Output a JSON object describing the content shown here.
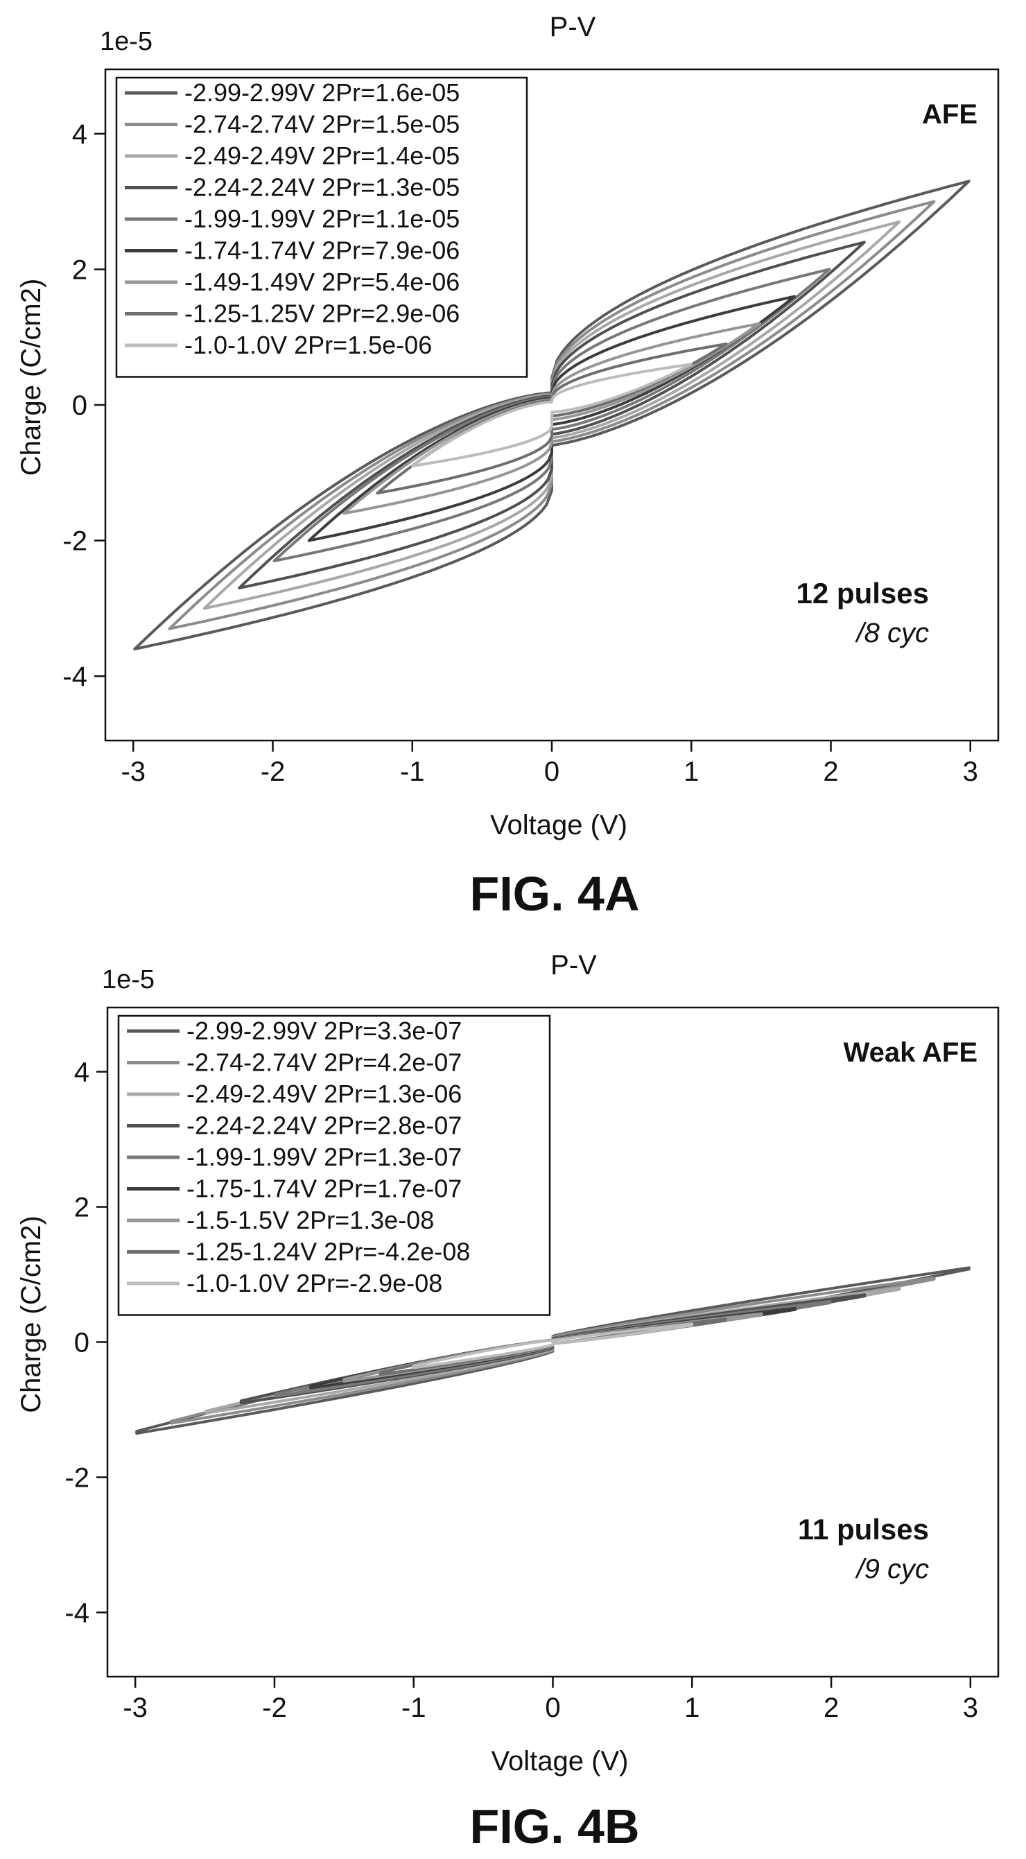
{
  "chart_data": [
    {
      "type": "line",
      "title": "P-V",
      "xlabel": "Voltage (V)",
      "ylabel": "Charge (C/cm2)",
      "y_multiplier_label": "1e-5",
      "xlim": [
        -3.2,
        3.2
      ],
      "ylim": [
        -4.95,
        4.95
      ],
      "xticks": [
        -3,
        -2,
        -1,
        0,
        1,
        2,
        3
      ],
      "yticks": [
        -4,
        -2,
        0,
        2,
        4
      ],
      "xtick_labels": [
        "-3",
        "-2",
        "-1",
        "0",
        "1",
        "2",
        "3"
      ],
      "ytick_labels": [
        "-4",
        "-2",
        "0",
        "2",
        "4"
      ],
      "legend_position": "top-left",
      "grid": false,
      "annotations": {
        "material": "AFE",
        "pulses": "12 pulses",
        "cycles": "/8 cyc"
      },
      "figure_label": "FIG. 4A",
      "series": [
        {
          "name": "-2.99-2.99V 2Pr=1.6e-05",
          "vmax": 2.99,
          "qmax": 3.3,
          "qmin": -3.6,
          "color": "#5a5a5a"
        },
        {
          "name": "-2.74-2.74V 2Pr=1.5e-05",
          "vmax": 2.74,
          "qmax": 3.0,
          "qmin": -3.3,
          "color": "#8c8c8c"
        },
        {
          "name": "-2.49-2.49V 2Pr=1.4e-05",
          "vmax": 2.49,
          "qmax": 2.7,
          "qmin": -3.0,
          "color": "#a8a8a8"
        },
        {
          "name": "-2.24-2.24V 2Pr=1.3e-05",
          "vmax": 2.24,
          "qmax": 2.4,
          "qmin": -2.7,
          "color": "#505050"
        },
        {
          "name": "-1.99-1.99V 2Pr=1.1e-05",
          "vmax": 1.99,
          "qmax": 2.0,
          "qmin": -2.3,
          "color": "#787878"
        },
        {
          "name": "-1.74-1.74V 2Pr=7.9e-06",
          "vmax": 1.74,
          "qmax": 1.6,
          "qmin": -2.0,
          "color": "#3c3c3c"
        },
        {
          "name": "-1.49-1.49V 2Pr=5.4e-06",
          "vmax": 1.49,
          "qmax": 1.2,
          "qmin": -1.6,
          "color": "#969696"
        },
        {
          "name": "-1.25-1.25V 2Pr=2.9e-06",
          "vmax": 1.25,
          "qmax": 0.9,
          "qmin": -1.3,
          "color": "#6e6e6e"
        },
        {
          "name": "-1.0-1.0V 2Pr=1.5e-06",
          "vmax": 1.0,
          "qmax": 0.6,
          "qmin": -0.9,
          "color": "#bcbcbc"
        }
      ]
    },
    {
      "type": "line",
      "title": "P-V",
      "xlabel": "Voltage (V)",
      "ylabel": "Charge (C/cm2)",
      "y_multiplier_label": "1e-5",
      "xlim": [
        -3.2,
        3.2
      ],
      "ylim": [
        -4.95,
        4.95
      ],
      "xticks": [
        -3,
        -2,
        -1,
        0,
        1,
        2,
        3
      ],
      "yticks": [
        -4,
        -2,
        0,
        2,
        4
      ],
      "xtick_labels": [
        "-3",
        "-2",
        "-1",
        "0",
        "1",
        "2",
        "3"
      ],
      "ytick_labels": [
        "-4",
        "-2",
        "0",
        "2",
        "4"
      ],
      "legend_position": "top-left",
      "grid": false,
      "annotations": {
        "material": "Weak AFE",
        "pulses": "11 pulses",
        "cycles": "/9 cyc"
      },
      "figure_label": "FIG. 4B",
      "series": [
        {
          "name": "-2.99-2.99V 2Pr=3.3e-07",
          "vmax": 2.99,
          "qmax": 1.1,
          "qmin": -1.35,
          "color": "#5a5a5a"
        },
        {
          "name": "-2.74-2.74V 2Pr=4.2e-07",
          "vmax": 2.74,
          "qmax": 0.95,
          "qmin": -1.2,
          "color": "#8c8c8c"
        },
        {
          "name": "-2.49-2.49V 2Pr=1.3e-06",
          "vmax": 2.49,
          "qmax": 0.8,
          "qmin": -1.05,
          "color": "#a8a8a8"
        },
        {
          "name": "-2.24-2.24V 2Pr=2.8e-07",
          "vmax": 2.24,
          "qmax": 0.7,
          "qmin": -0.9,
          "color": "#505050"
        },
        {
          "name": "-1.99-1.99V 2Pr=1.3e-07",
          "vmax": 1.99,
          "qmax": 0.6,
          "qmin": -0.8,
          "color": "#787878"
        },
        {
          "name": "-1.75-1.74V 2Pr=1.7e-07",
          "vmax": 1.74,
          "qmax": 0.5,
          "qmin": -0.68,
          "color": "#3c3c3c"
        },
        {
          "name": "-1.5-1.5V 2Pr=1.3e-08",
          "vmax": 1.5,
          "qmax": 0.42,
          "qmin": -0.58,
          "color": "#969696"
        },
        {
          "name": "-1.25-1.24V 2Pr=-4.2e-08",
          "vmax": 1.24,
          "qmax": 0.34,
          "qmin": -0.48,
          "color": "#6e6e6e"
        },
        {
          "name": "-1.0-1.0V 2Pr=-2.9e-08",
          "vmax": 1.0,
          "qmax": 0.27,
          "qmin": -0.38,
          "color": "#bcbcbc"
        }
      ]
    }
  ]
}
